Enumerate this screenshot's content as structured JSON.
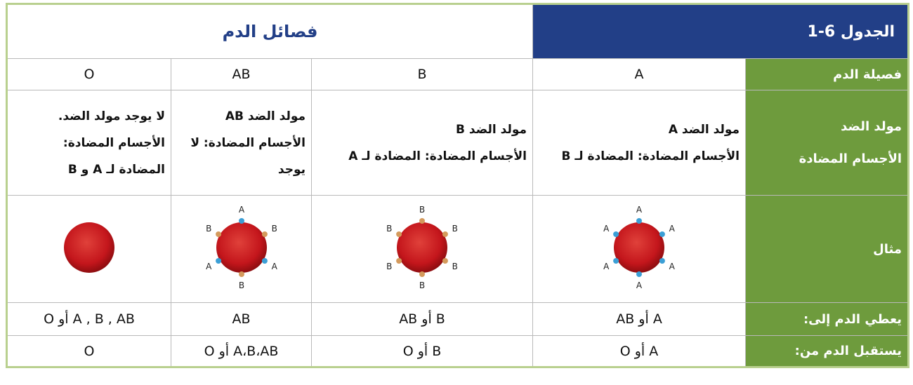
{
  "header": {
    "table_id": "الجدول 6-1",
    "title": "فصائل الدم"
  },
  "marker_colors": {
    "A": "#3b9fd6",
    "B": "#d49a5c"
  },
  "rows": [
    {
      "label": "فصيلة الدم",
      "cells": [
        "A",
        "B",
        "AB",
        "O"
      ]
    },
    {
      "label": [
        "مولد الضد",
        "الأجسام المضادة"
      ],
      "cells": [
        [
          "مولد الضد A",
          "الأجسام المضادة: المضادة لـ B"
        ],
        [
          "مولد الضد B",
          "الأجسام المضادة: المضادة لـ A"
        ],
        [
          "مولد الضد AB",
          "الأجسام المضادة: لا يوجد"
        ],
        [
          "لا يوجد مولد الضد.",
          "الأجسام المضادة: المضادة لـ A و B"
        ]
      ]
    },
    {
      "label": "مثال",
      "cells": [
        {
          "markers": [
            "A",
            "A",
            "A",
            "A",
            "A",
            "A"
          ]
        },
        {
          "markers": [
            "B",
            "B",
            "B",
            "B",
            "B",
            "B"
          ]
        },
        {
          "markers": [
            "A",
            "B",
            "B",
            "A",
            "A",
            "B"
          ]
        },
        {
          "markers": []
        }
      ]
    },
    {
      "label": "يعطي الدم إلى:",
      "cells": [
        "A أو AB",
        "B أو AB",
        "AB",
        "A , B , AB أو O"
      ]
    },
    {
      "label": "يستقبل الدم من:",
      "cells": [
        "A أو O",
        "B أو O",
        "A،B،AB أو O",
        "O"
      ]
    }
  ]
}
